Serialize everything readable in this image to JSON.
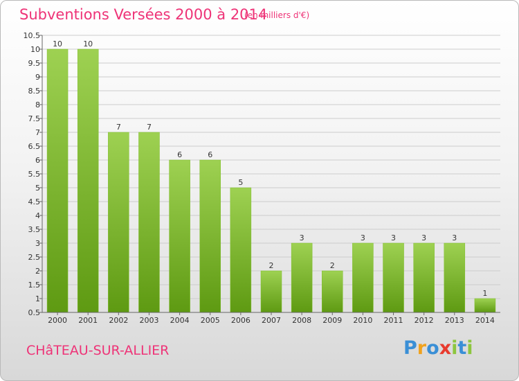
{
  "header": {
    "title": "Subventions Versées 2000 à 2014",
    "subtitle": "(en milliers d'€)"
  },
  "footer": {
    "commune": "CHâTEAU-SUR-ALLIER",
    "brand": "Proxiti",
    "brand_letters": [
      {
        "ch": "P",
        "color": "#3a8fd6"
      },
      {
        "ch": "r",
        "color": "#f0a21e"
      },
      {
        "ch": "o",
        "color": "#3a8fd6"
      },
      {
        "ch": "x",
        "color": "#e83b2e"
      },
      {
        "ch": "i",
        "color": "#8dc63f"
      },
      {
        "ch": "t",
        "color": "#3a8fd6"
      },
      {
        "ch": "i",
        "color": "#8dc63f"
      }
    ]
  },
  "colors": {
    "title": "#ee3377",
    "bar_top": "#9ed152",
    "bar_bottom": "#5e9a12",
    "grid": "#cccccc"
  },
  "chart_data": {
    "type": "bar",
    "categories": [
      "2000",
      "2001",
      "2002",
      "2003",
      "2004",
      "2005",
      "2006",
      "2007",
      "2008",
      "2009",
      "2010",
      "2011",
      "2012",
      "2013",
      "2014"
    ],
    "values": [
      10,
      10,
      7,
      7,
      6,
      6,
      5,
      2,
      3,
      2,
      3,
      3,
      3,
      3,
      1
    ],
    "data_labels": [
      "10",
      "10",
      "7",
      "7",
      "6",
      "6",
      "5",
      "2",
      "3",
      "2",
      "3",
      "3",
      "3",
      "3",
      "1"
    ],
    "ylim": [
      0.5,
      10.5
    ],
    "yticks": [
      0.5,
      1,
      1.5,
      2,
      2.5,
      3,
      3.5,
      4,
      4.5,
      5,
      5.5,
      6,
      6.5,
      7,
      7.5,
      8,
      8.5,
      9,
      9.5,
      10,
      10.5
    ],
    "ytick_labels": [
      "0.5",
      "1",
      "1.5",
      "2",
      "2.5",
      "3",
      "3.5",
      "4",
      "4.5",
      "5",
      "5.5",
      "6",
      "6.5",
      "7",
      "7.5",
      "8",
      "8.5",
      "9",
      "9.5",
      "10",
      "10.5"
    ],
    "grid": true,
    "legend": false
  }
}
